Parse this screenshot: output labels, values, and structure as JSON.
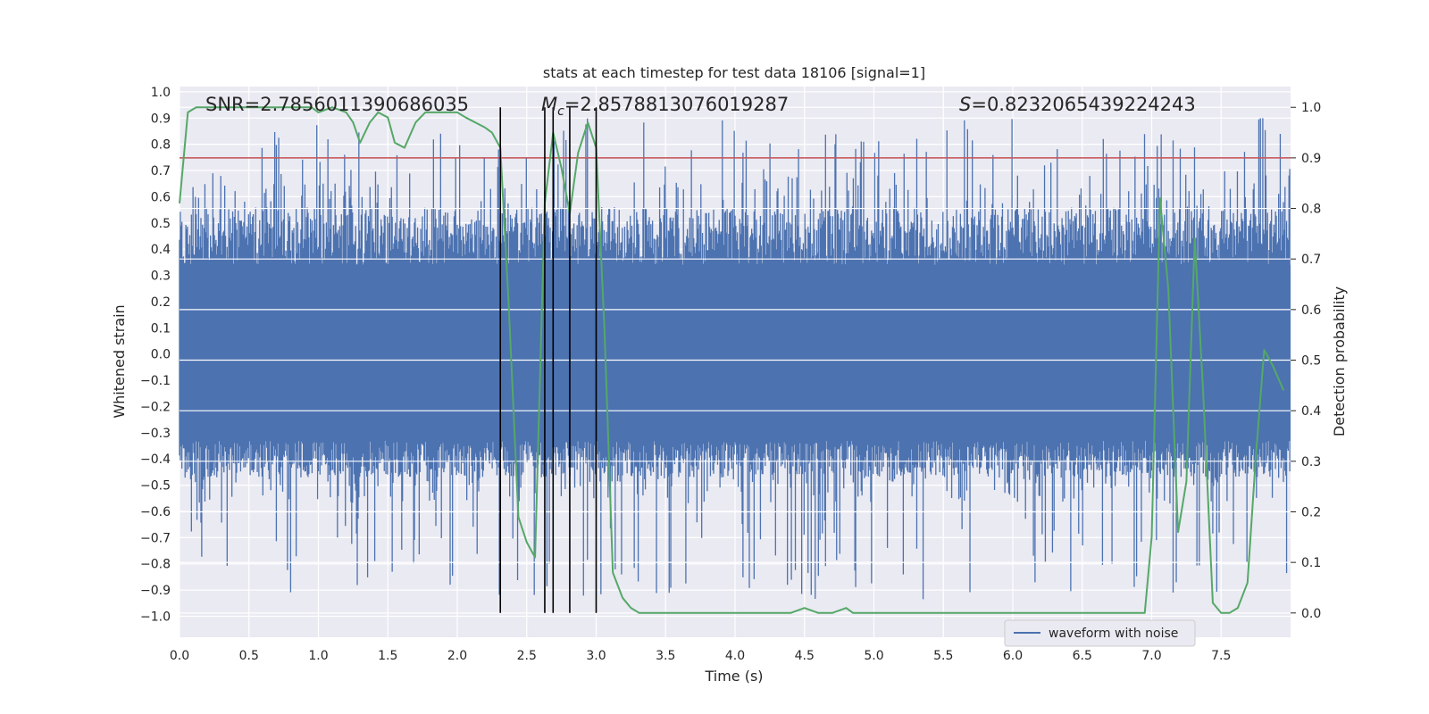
{
  "chart_data": {
    "type": "line",
    "title": "stats at each timestep for test data 18106 [signal=1]",
    "xlabel": "Time (s)",
    "ylabel_left": "Whitened strain",
    "ylabel_right": "Detection probability",
    "xlim": [
      0.0,
      8.0
    ],
    "ylim_left": [
      -1.08,
      1.02
    ],
    "ylim_right": [
      -0.048,
      1.041
    ],
    "x_ticks": [
      "0.0",
      "0.5",
      "1.0",
      "1.5",
      "2.0",
      "2.5",
      "3.0",
      "3.5",
      "4.0",
      "4.5",
      "5.0",
      "5.5",
      "6.0",
      "6.5",
      "7.0",
      "7.5"
    ],
    "y_ticks_left": [
      "1.0",
      "0.9",
      "0.8",
      "0.7",
      "0.6",
      "0.5",
      "0.4",
      "0.3",
      "0.2",
      "0.1",
      "0.0",
      "−0.1",
      "−0.2",
      "−0.3",
      "−0.4",
      "−0.5",
      "−0.6",
      "−0.7",
      "−0.8",
      "−0.9",
      "−1.0"
    ],
    "y_ticks_right": [
      "1.0",
      "0.9",
      "0.8",
      "0.7",
      "0.6",
      "0.5",
      "0.4",
      "0.3",
      "0.2",
      "0.1",
      "0.0"
    ],
    "annotations": {
      "snr": "SNR=2.7856011390686035",
      "mc_symbol": "M",
      "mc_sub": "c",
      "mc_value": "=2.8578813076019287",
      "s_symbol": "S",
      "s_value": "=0.8232065439224243"
    },
    "legend": {
      "label": "waveform with noise",
      "position": "lower-right"
    },
    "threshold": {
      "value": 0.9,
      "axis": "right",
      "color": "#c44e52"
    },
    "event_markers_x": [
      2.31,
      2.63,
      2.69,
      2.81,
      3.0
    ],
    "waveform": {
      "name": "waveform with noise",
      "color": "#4c72b0",
      "duration": 8.0,
      "note": "noise-dominated whitened strain, approx. +/-0.35 body with spikes to about +/-0.9"
    },
    "series": [
      {
        "name": "detection probability",
        "axis": "right",
        "color": "#55a868",
        "x": [
          0.0,
          0.06,
          0.12,
          0.25,
          0.4,
          0.55,
          0.7,
          0.85,
          0.95,
          1.0,
          1.1,
          1.2,
          1.25,
          1.3,
          1.37,
          1.43,
          1.5,
          1.55,
          1.62,
          1.7,
          1.77,
          1.85,
          2.0,
          2.06,
          2.13,
          2.2,
          2.25,
          2.31,
          2.37,
          2.44,
          2.5,
          2.56,
          2.63,
          2.69,
          2.75,
          2.81,
          2.87,
          2.94,
          3.0,
          3.06,
          3.12,
          3.19,
          3.25,
          3.31,
          3.4,
          3.6,
          3.8,
          4.0,
          4.2,
          4.4,
          4.5,
          4.6,
          4.7,
          4.8,
          4.85,
          5.0,
          5.2,
          5.5,
          5.8,
          6.0,
          6.5,
          6.9,
          6.95,
          7.0,
          7.06,
          7.12,
          7.19,
          7.25,
          7.31,
          7.37,
          7.44,
          7.5,
          7.56,
          7.62,
          7.69,
          7.75,
          7.81,
          7.87,
          7.95
        ],
        "values": [
          0.81,
          0.99,
          1.0,
          1.0,
          1.0,
          1.0,
          1.0,
          1.0,
          1.0,
          0.99,
          1.0,
          0.99,
          0.97,
          0.93,
          0.97,
          0.99,
          0.98,
          0.93,
          0.92,
          0.97,
          0.99,
          0.99,
          0.99,
          0.98,
          0.97,
          0.96,
          0.95,
          0.92,
          0.61,
          0.19,
          0.14,
          0.11,
          0.81,
          0.95,
          0.88,
          0.79,
          0.91,
          0.97,
          0.92,
          0.56,
          0.08,
          0.03,
          0.01,
          0.0,
          0.0,
          0.0,
          0.0,
          0.0,
          0.0,
          0.0,
          0.01,
          0.0,
          0.0,
          0.01,
          0.0,
          0.0,
          0.0,
          0.0,
          0.0,
          0.0,
          0.0,
          0.0,
          0.0,
          0.15,
          0.82,
          0.64,
          0.16,
          0.26,
          0.74,
          0.44,
          0.02,
          0.0,
          0.0,
          0.01,
          0.06,
          0.31,
          0.52,
          0.49,
          0.44
        ]
      }
    ]
  }
}
